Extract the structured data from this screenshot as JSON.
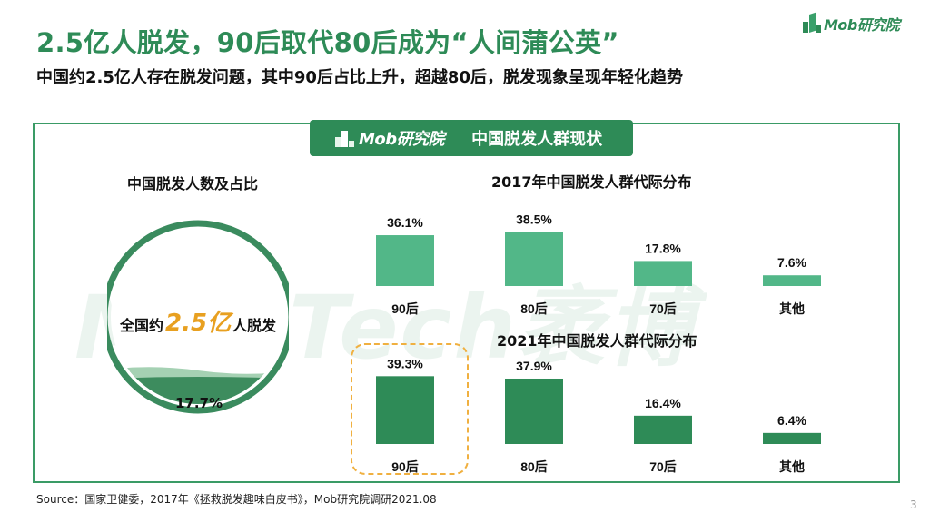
{
  "logo": {
    "text": "Mob研究院"
  },
  "title": "2.5亿人脱发，90后取代80后成为“人间蒲公英”",
  "subtitle": "中国约2.5亿人存在脱发问题，其中90后占比上升，超越80后，脱发现象呈现年轻化趋势",
  "banner": {
    "logo_text": "Mob研究院",
    "title": "中国脱发人群现状"
  },
  "watermark": "MobTech袤博",
  "left_panel": {
    "title": "中国脱发人数及占比",
    "prefix": "全国约",
    "number": "2.5亿",
    "suffix": "人脱发",
    "percent_label": "17.7%",
    "fill_fraction": 0.177
  },
  "colors": {
    "bar_2017": "#52b788",
    "bar_2021": "#2e8b57",
    "accent": "#e8a020",
    "highlight": "#f0b040"
  },
  "chart_data": [
    {
      "type": "bar",
      "title": "2017年中国脱发人群代际分布",
      "categories": [
        "90后",
        "80后",
        "70后",
        "其他"
      ],
      "values": [
        36.1,
        38.5,
        17.8,
        7.6
      ],
      "value_labels": [
        "36.1%",
        "38.5%",
        "17.8%",
        "7.6%"
      ],
      "ylim": [
        0,
        40
      ]
    },
    {
      "type": "bar",
      "title": "2021年中国脱发人群代际分布",
      "categories": [
        "90后",
        "80后",
        "70后",
        "其他"
      ],
      "values": [
        39.3,
        37.9,
        16.4,
        6.4
      ],
      "value_labels": [
        "39.3%",
        "37.9%",
        "16.4%",
        "6.4%"
      ],
      "ylim": [
        0,
        40
      ]
    }
  ],
  "source": "Source：国家卫健委，2017年《拯救脱发趣味白皮书》，Mob研究院调研2021.08",
  "page_number": "3"
}
